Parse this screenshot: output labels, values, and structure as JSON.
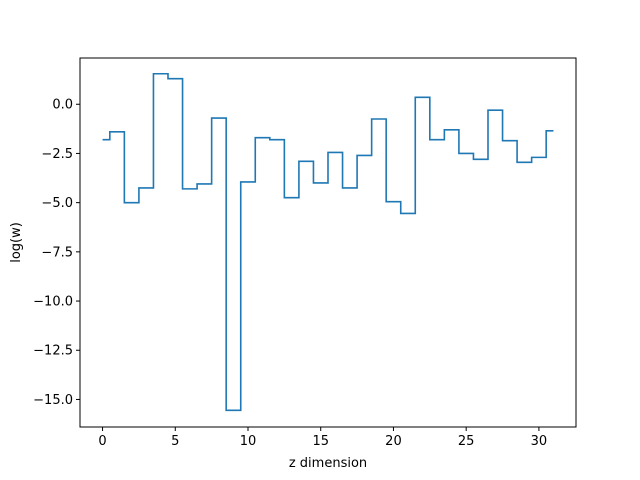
{
  "chart_data": {
    "type": "line",
    "drawstyle": "steps-mid",
    "title": "",
    "xlabel": "z dimension",
    "ylabel": "log(w)",
    "xlim": [
      -1.55,
      32.55
    ],
    "ylim": [
      -16.4,
      2.35
    ],
    "xticks": [
      0,
      5,
      10,
      15,
      20,
      25,
      30
    ],
    "xtick_labels": [
      "0",
      "5",
      "10",
      "15",
      "20",
      "25",
      "30"
    ],
    "yticks": [
      0.0,
      -2.5,
      -5.0,
      -7.5,
      -10.0,
      -12.5,
      -15.0
    ],
    "ytick_labels": [
      "0.0",
      "−2.5",
      "−5.0",
      "−7.5",
      "−10.0",
      "−12.5",
      "−15.0"
    ],
    "grid": false,
    "legend": "none",
    "series": [
      {
        "color": "#1f77b4",
        "x": [
          0,
          1,
          2,
          3,
          4,
          5,
          6,
          7,
          8,
          9,
          10,
          11,
          12,
          13,
          14,
          15,
          16,
          17,
          18,
          19,
          20,
          21,
          22,
          23,
          24,
          25,
          26,
          27,
          28,
          29,
          30,
          31
        ],
        "y": [
          -1.8,
          -1.4,
          -5.0,
          -4.25,
          1.55,
          1.3,
          -4.3,
          -4.05,
          -0.7,
          -15.55,
          -3.95,
          -1.7,
          -1.8,
          -4.75,
          -2.9,
          -4.0,
          -2.45,
          -4.25,
          -2.6,
          -0.75,
          -4.95,
          -5.55,
          0.35,
          -1.8,
          -1.3,
          -2.5,
          -2.8,
          -0.3,
          -1.85,
          -2.95,
          -2.7,
          -1.35
        ]
      }
    ]
  }
}
